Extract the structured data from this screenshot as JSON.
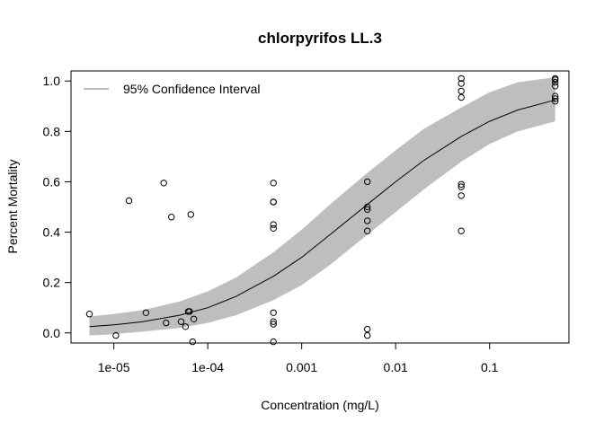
{
  "chart_data": {
    "type": "scatter",
    "title": "chlorpyrifos LL.3",
    "xlabel": "Concentration (mg/L)",
    "ylabel": "Percent Mortality",
    "x_scale": "log10",
    "xlim": [
      3.5e-06,
      0.7
    ],
    "ylim": [
      -0.04,
      1.04
    ],
    "x_ticks": [
      {
        "value": 1e-05,
        "label": "1e-05"
      },
      {
        "value": 0.0001,
        "label": "1e-04"
      },
      {
        "value": 0.001,
        "label": "0.001"
      },
      {
        "value": 0.01,
        "label": "0.01"
      },
      {
        "value": 0.1,
        "label": "0.1"
      }
    ],
    "y_ticks": [
      {
        "value": 0.0,
        "label": "0.0"
      },
      {
        "value": 0.2,
        "label": "0.2"
      },
      {
        "value": 0.4,
        "label": "0.4"
      },
      {
        "value": 0.6,
        "label": "0.6"
      },
      {
        "value": 0.8,
        "label": "0.8"
      },
      {
        "value": 1.0,
        "label": "1.0"
      }
    ],
    "legend": {
      "position": "top-left",
      "entries": [
        {
          "label": "95% Confidence Interval",
          "color": "#bebebe"
        }
      ]
    },
    "points": [
      {
        "x": 5.5e-06,
        "y": 0.075
      },
      {
        "x": 1.05e-05,
        "y": -0.01
      },
      {
        "x": 1.45e-05,
        "y": 0.525
      },
      {
        "x": 2.2e-05,
        "y": 0.08
      },
      {
        "x": 3.4e-05,
        "y": 0.595
      },
      {
        "x": 3.6e-05,
        "y": 0.04
      },
      {
        "x": 4.1e-05,
        "y": 0.46
      },
      {
        "x": 5.2e-05,
        "y": 0.045
      },
      {
        "x": 5.8e-05,
        "y": 0.025
      },
      {
        "x": 6.2e-05,
        "y": 0.085
      },
      {
        "x": 6.4e-05,
        "y": 0.085
      },
      {
        "x": 6.6e-05,
        "y": 0.47
      },
      {
        "x": 7.1e-05,
        "y": 0.055
      },
      {
        "x": 6.9e-05,
        "y": -0.035
      },
      {
        "x": 0.0005,
        "y": 0.595
      },
      {
        "x": 0.0005,
        "y": 0.52
      },
      {
        "x": 0.0005,
        "y": 0.52
      },
      {
        "x": 0.0005,
        "y": 0.43
      },
      {
        "x": 0.0005,
        "y": 0.415
      },
      {
        "x": 0.0005,
        "y": 0.08
      },
      {
        "x": 0.0005,
        "y": 0.045
      },
      {
        "x": 0.0005,
        "y": 0.035
      },
      {
        "x": 0.0005,
        "y": -0.035
      },
      {
        "x": 0.005,
        "y": 0.6
      },
      {
        "x": 0.005,
        "y": 0.5
      },
      {
        "x": 0.005,
        "y": 0.49
      },
      {
        "x": 0.005,
        "y": 0.445
      },
      {
        "x": 0.005,
        "y": 0.405
      },
      {
        "x": 0.005,
        "y": 0.015
      },
      {
        "x": 0.005,
        "y": -0.01
      },
      {
        "x": 0.05,
        "y": 1.01
      },
      {
        "x": 0.05,
        "y": 0.99
      },
      {
        "x": 0.05,
        "y": 0.96
      },
      {
        "x": 0.05,
        "y": 0.935
      },
      {
        "x": 0.05,
        "y": 0.59
      },
      {
        "x": 0.05,
        "y": 0.58
      },
      {
        "x": 0.05,
        "y": 0.545
      },
      {
        "x": 0.05,
        "y": 0.405
      },
      {
        "x": 0.5,
        "y": 1.01
      },
      {
        "x": 0.5,
        "y": 1.005
      },
      {
        "x": 0.5,
        "y": 0.995
      },
      {
        "x": 0.5,
        "y": 0.98
      },
      {
        "x": 0.5,
        "y": 0.94
      },
      {
        "x": 0.5,
        "y": 0.93
      },
      {
        "x": 0.5,
        "y": 0.92
      }
    ],
    "fit_curve": {
      "model": "LL.3",
      "x": [
        5.5e-06,
        1e-05,
        2e-05,
        5e-05,
        0.0001,
        0.0002,
        0.0005,
        0.001,
        0.002,
        0.005,
        0.01,
        0.02,
        0.05,
        0.1,
        0.2,
        0.5
      ],
      "y": [
        0.025,
        0.032,
        0.044,
        0.07,
        0.1,
        0.145,
        0.225,
        0.3,
        0.39,
        0.51,
        0.6,
        0.685,
        0.78,
        0.84,
        0.885,
        0.925
      ]
    },
    "confidence_band": {
      "x": [
        5.5e-06,
        1e-05,
        2e-05,
        5e-05,
        0.0001,
        0.0002,
        0.0005,
        0.001,
        0.002,
        0.005,
        0.01,
        0.02,
        0.05,
        0.1,
        0.2,
        0.5
      ],
      "lower": [
        -0.01,
        -0.005,
        0.005,
        0.02,
        0.04,
        0.07,
        0.13,
        0.19,
        0.27,
        0.39,
        0.48,
        0.57,
        0.68,
        0.75,
        0.8,
        0.84
      ],
      "upper": [
        0.065,
        0.075,
        0.09,
        0.125,
        0.165,
        0.22,
        0.32,
        0.41,
        0.51,
        0.635,
        0.725,
        0.81,
        0.895,
        0.955,
        0.995,
        1.015
      ]
    }
  }
}
